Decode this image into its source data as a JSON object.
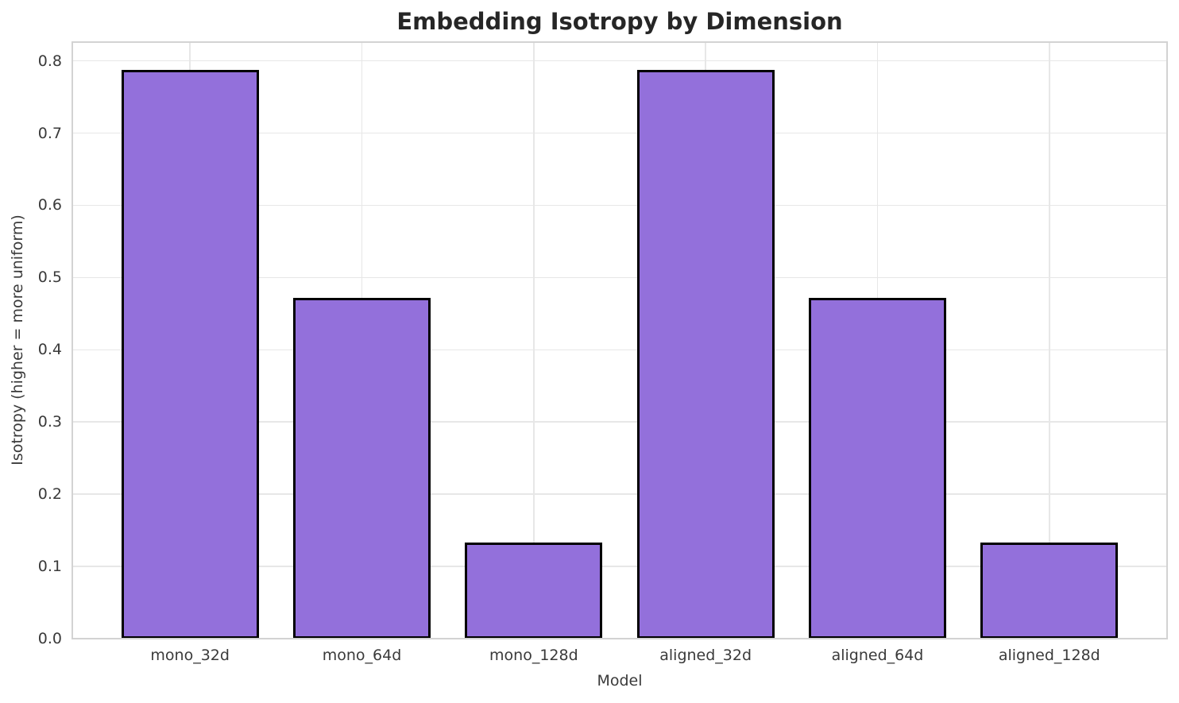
{
  "chart_data": {
    "type": "bar",
    "title": "Embedding Isotropy by Dimension",
    "xlabel": "Model",
    "ylabel": "Isotropy (higher = more uniform)",
    "categories": [
      "mono_32d",
      "mono_64d",
      "mono_128d",
      "aligned_32d",
      "aligned_64d",
      "aligned_128d"
    ],
    "values": [
      0.787,
      0.472,
      0.133,
      0.787,
      0.472,
      0.133
    ],
    "yticks": [
      0.0,
      0.1,
      0.2,
      0.3,
      0.4,
      0.5,
      0.6,
      0.7,
      0.8
    ],
    "ytick_labels": [
      "0.0",
      "0.1",
      "0.2",
      "0.3",
      "0.4",
      "0.5",
      "0.6",
      "0.7",
      "0.8"
    ],
    "ylim": [
      0,
      0.826
    ],
    "xlim": [
      -0.685,
      5.685
    ],
    "bar_width": 0.8,
    "grid": true,
    "legend": false,
    "colors": {
      "bar_fill": "#9370DB",
      "bar_edge": "#000000",
      "grid": "#e7e7e7",
      "spine": "#d3d3d3",
      "title": "#262626",
      "tick_label": "#3a3a3a",
      "background": "#ffffff"
    }
  }
}
